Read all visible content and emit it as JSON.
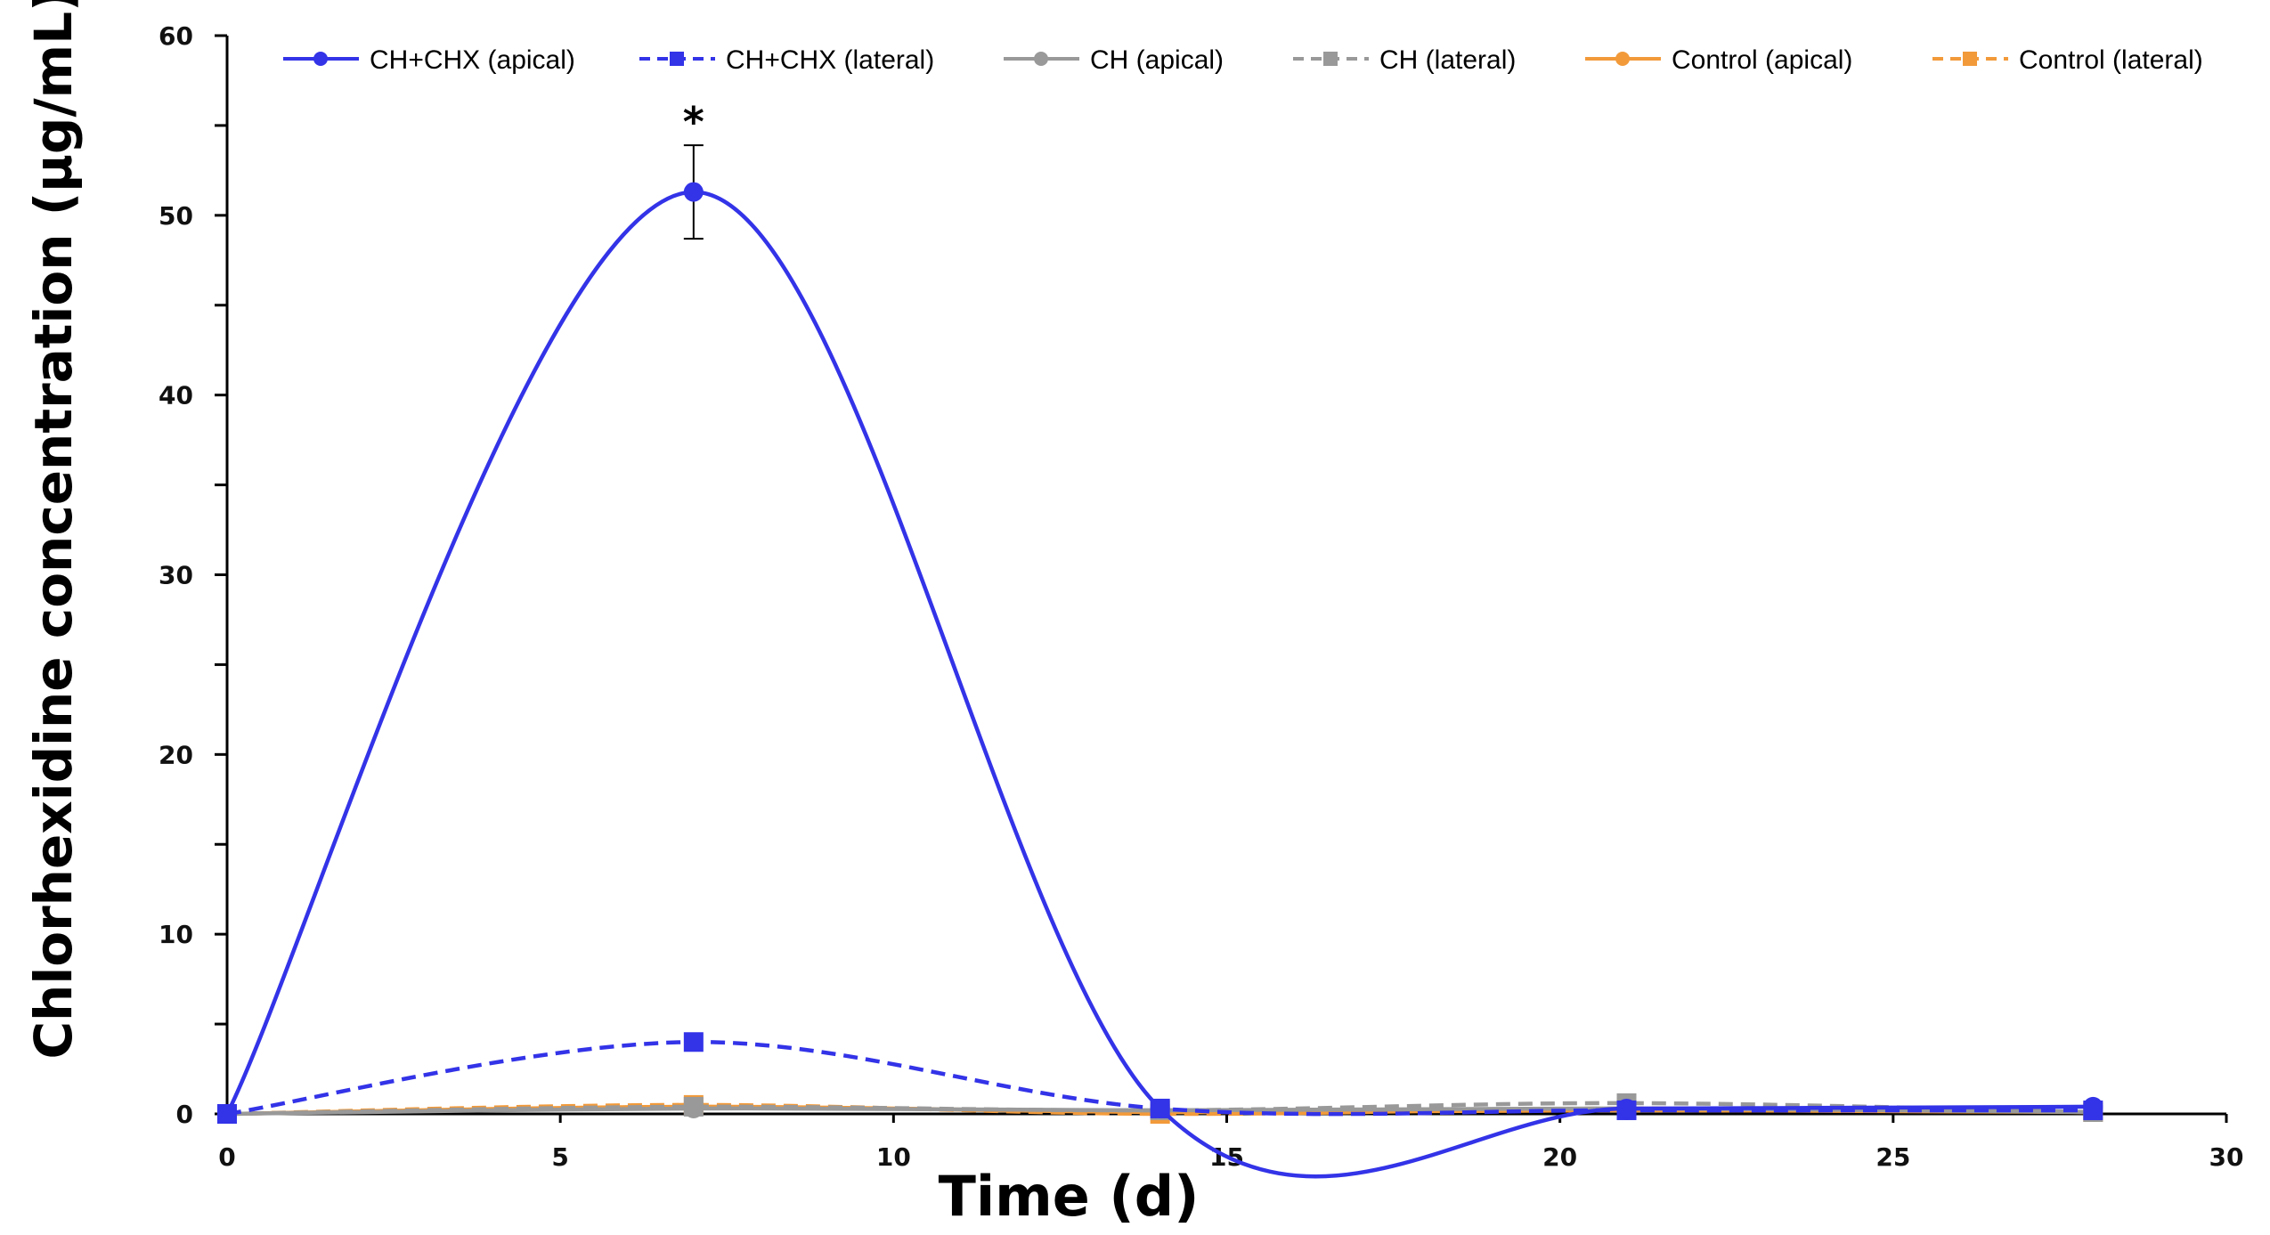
{
  "chart_data": {
    "type": "line",
    "title": "",
    "xlabel": "Time (d)",
    "ylabel": "Chlorhexidine concentration (µg/mL)",
    "xlim": [
      0,
      30
    ],
    "ylim": [
      0,
      60
    ],
    "x_ticks": [
      0,
      5,
      10,
      15,
      20,
      25,
      30
    ],
    "y_ticks": [
      0,
      10,
      20,
      30,
      40,
      50,
      60
    ],
    "grid": false,
    "legend_position": "top",
    "x": [
      0,
      7,
      14,
      21,
      28
    ],
    "series": [
      {
        "name": "CH+CHX (apical)",
        "values": [
          0,
          51.3,
          0.3,
          0.3,
          0.4
        ],
        "color": "#3333e8",
        "dash": false,
        "marker": "circle",
        "error": [
          0,
          2.6,
          0,
          0,
          0
        ]
      },
      {
        "name": "CH+CHX (lateral)",
        "values": [
          0,
          4.0,
          0.3,
          0.2,
          0.2
        ],
        "color": "#3333e8",
        "dash": true,
        "marker": "square"
      },
      {
        "name": "CH (apical)",
        "values": [
          0,
          0.3,
          0.2,
          0.3,
          0.1
        ],
        "color": "#999999",
        "dash": false,
        "marker": "circle"
      },
      {
        "name": "CH (lateral)",
        "values": [
          0,
          0.4,
          0.2,
          0.6,
          0.1
        ],
        "color": "#999999",
        "dash": true,
        "marker": "square"
      },
      {
        "name": "Control (apical)",
        "values": [
          0,
          0.4,
          0.1,
          0.2,
          0.1
        ],
        "color": "#f29a3a",
        "dash": false,
        "marker": "circle"
      },
      {
        "name": "Control (lateral)",
        "values": [
          0,
          0.5,
          0.0,
          0.3,
          0.1
        ],
        "color": "#f29a3a",
        "dash": true,
        "marker": "square"
      }
    ],
    "annotations": [
      {
        "x": 7,
        "series": "CH+CHX (apical)",
        "text": "*"
      }
    ]
  }
}
